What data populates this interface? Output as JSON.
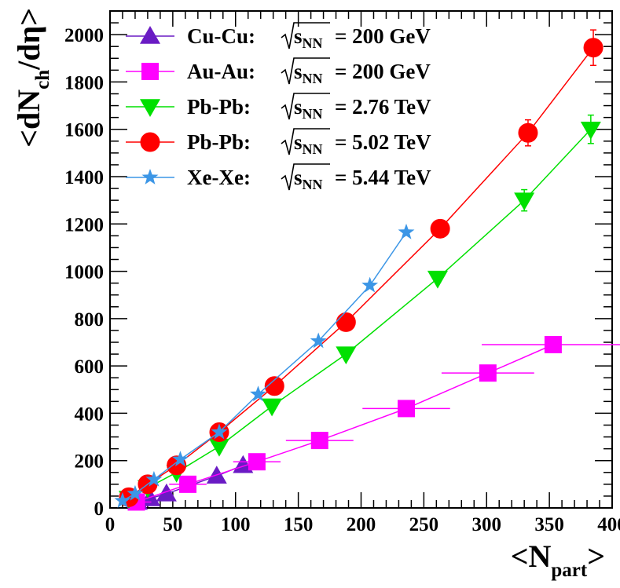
{
  "chart_data": {
    "type": "scatter",
    "xlabel": {
      "main": "<N",
      "sub": "part",
      "end": ">"
    },
    "ylabel": {
      "main": "<dN",
      "sub": "ch",
      "end": "/dη>"
    },
    "xlim": [
      0,
      400
    ],
    "ylim": [
      0,
      2100
    ],
    "x_ticks": [
      "0",
      "50",
      "100",
      "150",
      "200",
      "250",
      "300",
      "350",
      "400"
    ],
    "y_ticks": [
      "0",
      "200",
      "400",
      "600",
      "800",
      "1000",
      "1200",
      "1400",
      "1600",
      "1800",
      "2000"
    ],
    "grid": false,
    "legend_position": "top-left",
    "series": [
      {
        "name": "Cu-Cu",
        "energy_label": "= 200 GeV",
        "color": "#6a1bc4",
        "marker": "triangle-up",
        "points": [
          [
            22,
            25
          ],
          [
            32,
            40
          ],
          [
            45,
            60
          ],
          [
            85,
            135
          ],
          [
            106,
            180
          ]
        ]
      },
      {
        "name": "Au-Au",
        "energy_label": "= 200 GeV",
        "color": "#ff00ff",
        "marker": "square",
        "points": [
          [
            21,
            25
          ],
          [
            62,
            100
          ],
          [
            117,
            195
          ],
          [
            167,
            285
          ],
          [
            236,
            420
          ],
          [
            301,
            570
          ],
          [
            353,
            690
          ]
        ],
        "errors": [
          [
            21,
            5
          ],
          [
            62,
            8
          ],
          [
            117,
            12
          ],
          [
            167,
            20
          ],
          [
            236,
            28
          ],
          [
            301,
            30
          ],
          [
            353,
            50
          ]
        ]
      },
      {
        "name": "Pb-Pb",
        "energy_label": "= 2.76 TeV",
        "color": "#00e000",
        "marker": "triangle-down",
        "points": [
          [
            15,
            40
          ],
          [
            30,
            85
          ],
          [
            53,
            150
          ],
          [
            87,
            260
          ],
          [
            129,
            430
          ],
          [
            188,
            650
          ],
          [
            261,
            970
          ],
          [
            330,
            1300
          ],
          [
            383,
            1600
          ]
        ],
        "errors": [
          [
            330,
            1300,
            45
          ],
          [
            383,
            1600,
            60
          ]
        ]
      },
      {
        "name": "Pb-Pb",
        "energy_label": "= 5.02 TeV",
        "color": "#ff0000",
        "marker": "circle",
        "points": [
          [
            15,
            45
          ],
          [
            30,
            100
          ],
          [
            53,
            180
          ],
          [
            87,
            320
          ],
          [
            131,
            515
          ],
          [
            188,
            785
          ],
          [
            263,
            1180
          ],
          [
            333,
            1585
          ],
          [
            385,
            1945
          ]
        ],
        "errors": [
          [
            333,
            1585,
            55
          ],
          [
            385,
            1945,
            75
          ]
        ]
      },
      {
        "name": "Xe-Xe",
        "energy_label": "= 5.44 TeV",
        "color": "#3c96e6",
        "marker": "star",
        "points": [
          [
            10,
            30
          ],
          [
            20,
            60
          ],
          [
            35,
            120
          ],
          [
            56,
            205
          ],
          [
            87,
            320
          ],
          [
            118,
            480
          ],
          [
            166,
            705
          ],
          [
            207,
            940
          ],
          [
            236,
            1165
          ]
        ]
      }
    ],
    "legend_symbol": {
      "sqrt": "√",
      "sub": "NN",
      "s": "s"
    }
  }
}
